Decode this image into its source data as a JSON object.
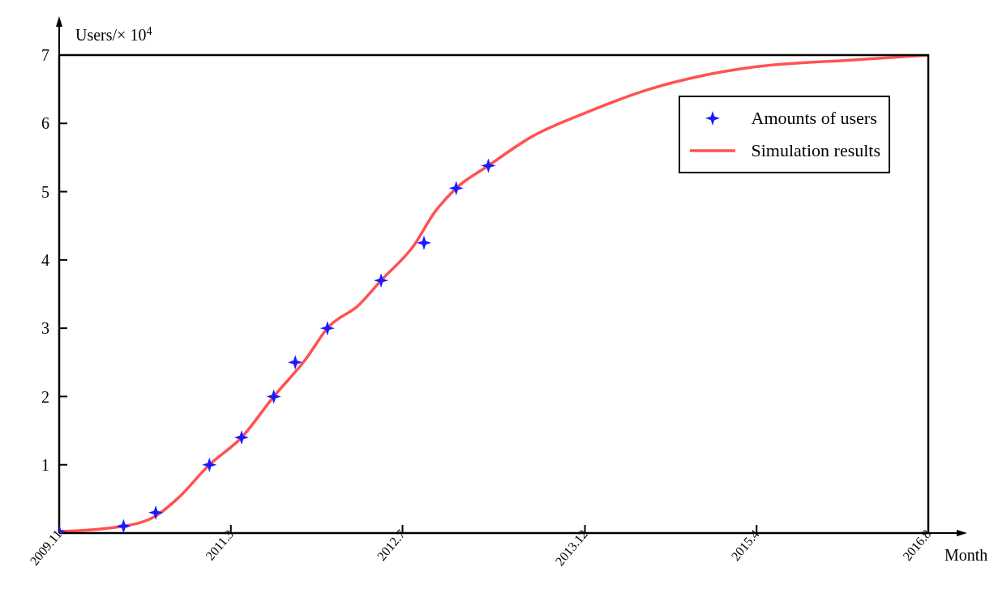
{
  "chart_data": {
    "type": "line",
    "xlabel": "Month",
    "ylabel": "Users/× 10$^{4}$",
    "xlim": [
      "2009-11",
      "2016-08"
    ],
    "xticks": [
      {
        "value": "2009-11",
        "label": "2009.11"
      },
      {
        "value": "2011-03",
        "label": "2011.3"
      },
      {
        "value": "2012-07",
        "label": "2012.7"
      },
      {
        "value": "2013-12",
        "label": "2013.12"
      },
      {
        "value": "2015-04",
        "label": "2015.4"
      },
      {
        "value": "2016-08",
        "label": "2016.8"
      }
    ],
    "ylim": [
      0,
      7
    ],
    "yticks": [
      1,
      2,
      3,
      4,
      5,
      6,
      7
    ],
    "grid": false,
    "legend": "top right",
    "series": [
      {
        "name": "Amounts of users",
        "type": "scatter",
        "marker": "star",
        "color": "#1a1aff",
        "x": [
          "2009-11",
          "2010-05",
          "2010-08",
          "2011-01",
          "2011-04",
          "2011-07",
          "2011-09",
          "2011-12",
          "2012-05",
          "2012-09",
          "2012-12",
          "2013-03"
        ],
        "values": [
          0.02,
          0.1,
          0.3,
          1.0,
          1.4,
          2.0,
          2.5,
          3.0,
          3.7,
          4.25,
          5.05,
          5.38
        ]
      },
      {
        "name": "Simulation results",
        "type": "line",
        "marker": "none",
        "line_style": "solid",
        "color": "#ff5252",
        "x": [
          "2009-11",
          "2010-05",
          "2010-08",
          "2010-10",
          "2011-01",
          "2011-04",
          "2011-07",
          "2011-10",
          "2011-12",
          "2012-03",
          "2012-05",
          "2012-08",
          "2012-10",
          "2012-12",
          "2013-03",
          "2013-07",
          "2013-12",
          "2014-06",
          "2014-11",
          "2015-04",
          "2016-01",
          "2016-08"
        ],
        "values": [
          0.02,
          0.1,
          0.25,
          0.5,
          1.0,
          1.4,
          2.0,
          2.55,
          3.0,
          3.35,
          3.7,
          4.2,
          4.7,
          5.05,
          5.38,
          5.8,
          6.15,
          6.5,
          6.7,
          6.83,
          6.93,
          7.0
        ]
      }
    ]
  }
}
